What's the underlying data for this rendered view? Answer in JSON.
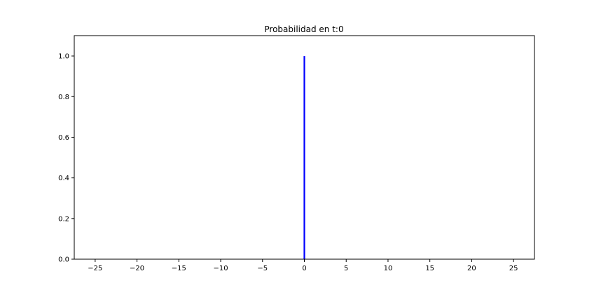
{
  "chart_data": {
    "type": "bar",
    "title": "Probabilidad en t:0",
    "xlabel": "",
    "ylabel": "",
    "xlim": [
      -27.5,
      27.5
    ],
    "ylim": [
      0,
      1.1
    ],
    "xticks": [
      -25,
      -20,
      -15,
      -10,
      -5,
      0,
      5,
      10,
      15,
      20,
      25
    ],
    "xtick_labels": [
      "−25",
      "−20",
      "−15",
      "−10",
      "−5",
      "0",
      "5",
      "10",
      "15",
      "20",
      "25"
    ],
    "yticks": [
      0.0,
      0.2,
      0.4,
      0.6,
      0.8,
      1.0
    ],
    "ytick_labels": [
      "0.0",
      "0.2",
      "0.4",
      "0.6",
      "0.8",
      "1.0"
    ],
    "grid": false,
    "legend": "none",
    "series": [
      {
        "color": "#0000ff",
        "points": [
          {
            "x": 0,
            "y": 1.0
          }
        ]
      }
    ]
  }
}
